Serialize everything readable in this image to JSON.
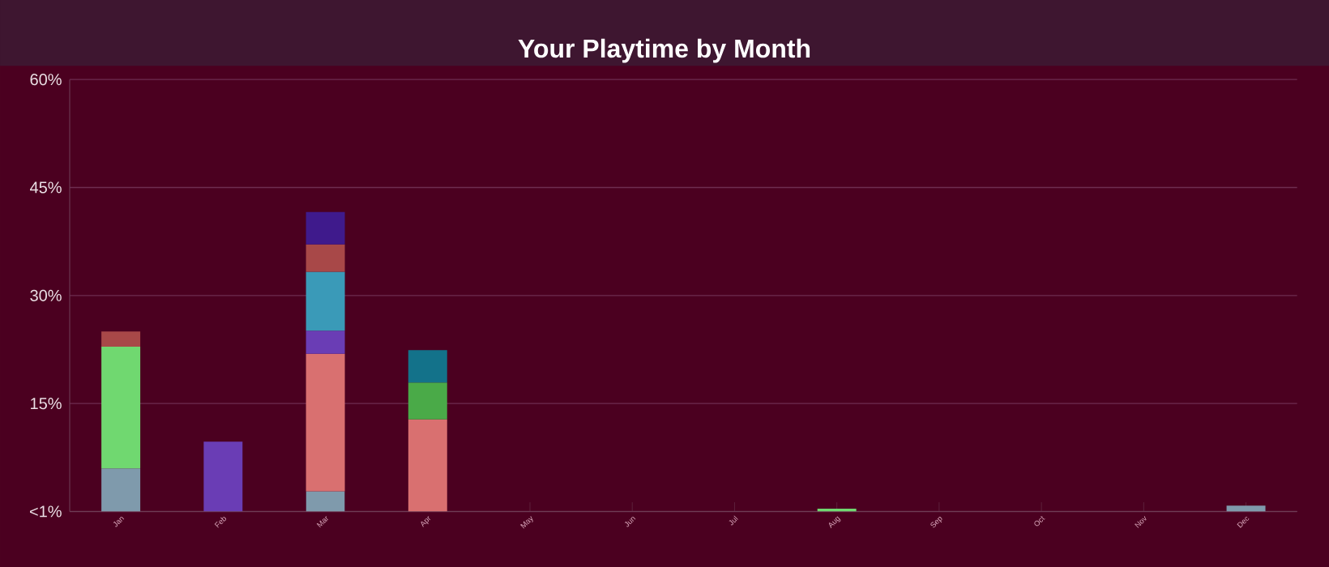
{
  "chart_data": {
    "type": "bar",
    "stacked": true,
    "title": "Your Playtime by Month",
    "categories": [
      "Jan",
      "Feb",
      "Mar",
      "Apr",
      "May",
      "Jun",
      "Jul",
      "Aug",
      "Sep",
      "Oct",
      "Nov",
      "Dec"
    ],
    "series": [
      {
        "color": "#7f9aac",
        "values": [
          6.0,
          null,
          2.8,
          null,
          null,
          null,
          null,
          null,
          null,
          null,
          null,
          0.8
        ]
      },
      {
        "color": "#d97070",
        "values": [
          null,
          null,
          19.1,
          12.8,
          null,
          null,
          null,
          null,
          null,
          null,
          null,
          null
        ]
      },
      {
        "color": "#70d870",
        "values": [
          16.9,
          null,
          null,
          null,
          null,
          null,
          null,
          0.4,
          null,
          null,
          null,
          null
        ]
      },
      {
        "color": "#6a3db5",
        "values": [
          null,
          9.7,
          3.2,
          null,
          null,
          null,
          null,
          null,
          null,
          null,
          null,
          null
        ]
      },
      {
        "color": "#3a9ab8",
        "values": [
          null,
          null,
          8.2,
          null,
          null,
          null,
          null,
          null,
          null,
          null,
          null,
          null
        ]
      },
      {
        "color": "#4aaa48",
        "values": [
          null,
          null,
          null,
          5.1,
          null,
          null,
          null,
          null,
          null,
          null,
          null,
          null
        ]
      },
      {
        "color": "#a84848",
        "values": [
          2.1,
          null,
          3.8,
          null,
          null,
          null,
          null,
          null,
          null,
          null,
          null,
          null
        ]
      },
      {
        "color": "#13728a",
        "values": [
          null,
          null,
          null,
          4.5,
          null,
          null,
          null,
          null,
          null,
          null,
          null,
          null
        ]
      },
      {
        "color": "#3f1a8c",
        "values": [
          null,
          null,
          4.5,
          null,
          null,
          null,
          null,
          null,
          null,
          null,
          null,
          null
        ]
      }
    ],
    "ylim": [
      0,
      60
    ],
    "yticks": [
      {
        "value": 0,
        "label": "<1%"
      },
      {
        "value": 15,
        "label": "15%"
      },
      {
        "value": 30,
        "label": "30%"
      },
      {
        "value": 45,
        "label": "45%"
      },
      {
        "value": 60,
        "label": "60%"
      }
    ],
    "grid": "y"
  }
}
